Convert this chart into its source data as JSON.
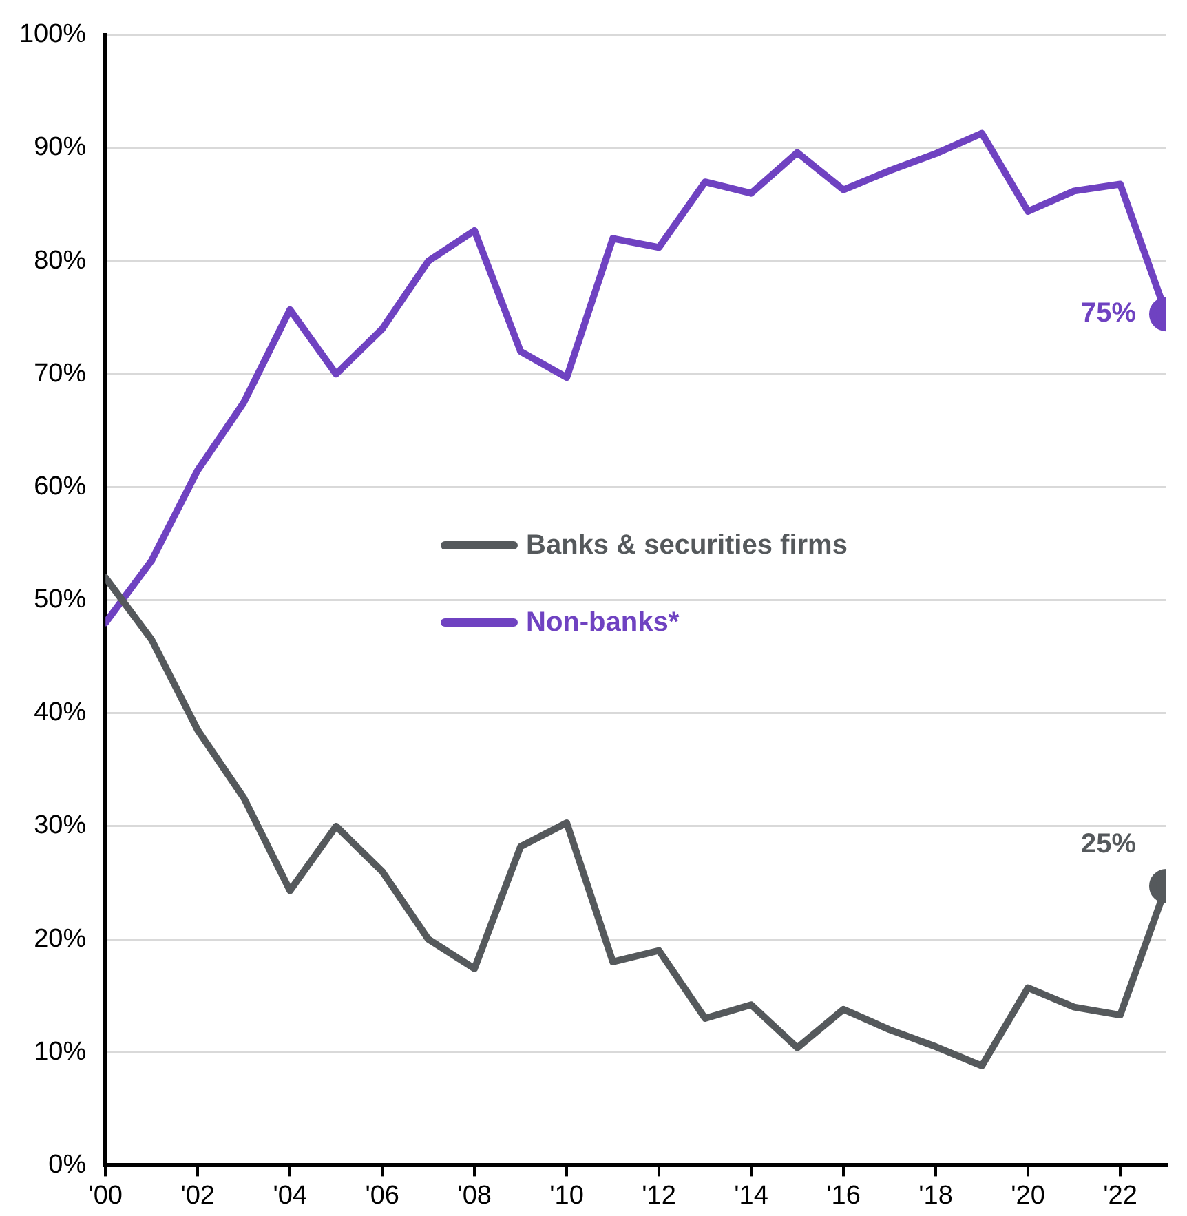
{
  "chart_data": {
    "type": "line",
    "x": [
      2000,
      2001,
      2002,
      2003,
      2004,
      2005,
      2006,
      2007,
      2008,
      2009,
      2010,
      2011,
      2012,
      2013,
      2014,
      2015,
      2016,
      2017,
      2018,
      2019,
      2020,
      2021,
      2022,
      2023
    ],
    "series": [
      {
        "name": "Banks & securities firms",
        "color": "#55595c",
        "values": [
          52,
          46.5,
          38.5,
          32.5,
          24.3,
          30,
          26,
          20,
          17.4,
          28.2,
          30.3,
          18,
          19,
          13,
          14.2,
          10.4,
          13.8,
          12,
          10.5,
          8.8,
          15.7,
          14,
          13.3,
          24.7
        ],
        "value_labels": [
          null,
          null,
          null,
          null,
          null,
          null,
          null,
          null,
          null,
          null,
          null,
          null,
          null,
          null,
          null,
          null,
          null,
          null,
          null,
          null,
          null,
          null,
          null,
          "25%"
        ]
      },
      {
        "name": "Non-banks*",
        "color": "#6f42c1",
        "values": [
          48,
          53.5,
          61.5,
          67.5,
          75.7,
          70,
          74,
          80,
          82.7,
          72,
          69.7,
          82,
          81.2,
          87,
          86,
          89.6,
          86.3,
          88,
          89.5,
          91.3,
          84.4,
          86.2,
          86.8,
          75.3
        ],
        "value_labels": [
          null,
          null,
          null,
          null,
          null,
          null,
          null,
          null,
          null,
          null,
          null,
          null,
          null,
          null,
          null,
          null,
          null,
          null,
          null,
          null,
          null,
          null,
          null,
          "75%"
        ]
      }
    ],
    "xlim": [
      2000,
      2023
    ],
    "xticks": [
      {
        "value": 2000,
        "label": "'00"
      },
      {
        "value": 2002,
        "label": "'02"
      },
      {
        "value": 2004,
        "label": "'04"
      },
      {
        "value": 2006,
        "label": "'06"
      },
      {
        "value": 2008,
        "label": "'08"
      },
      {
        "value": 2010,
        "label": "'10"
      },
      {
        "value": 2012,
        "label": "'12"
      },
      {
        "value": 2014,
        "label": "'14"
      },
      {
        "value": 2016,
        "label": "'16"
      },
      {
        "value": 2018,
        "label": "'18"
      },
      {
        "value": 2020,
        "label": "'20"
      },
      {
        "value": 2022,
        "label": "'22"
      }
    ],
    "ylim": [
      0,
      100
    ],
    "yticks": [
      {
        "value": 0,
        "label": "0%"
      },
      {
        "value": 10,
        "label": "10%"
      },
      {
        "value": 20,
        "label": "20%"
      },
      {
        "value": 30,
        "label": "30%"
      },
      {
        "value": 40,
        "label": "40%"
      },
      {
        "value": 50,
        "label": "50%"
      },
      {
        "value": 60,
        "label": "60%"
      },
      {
        "value": 70,
        "label": "70%"
      },
      {
        "value": 80,
        "label": "80%"
      },
      {
        "value": 90,
        "label": "90%"
      },
      {
        "value": 100,
        "label": "100%"
      }
    ],
    "grid": "y",
    "legend": "center"
  }
}
